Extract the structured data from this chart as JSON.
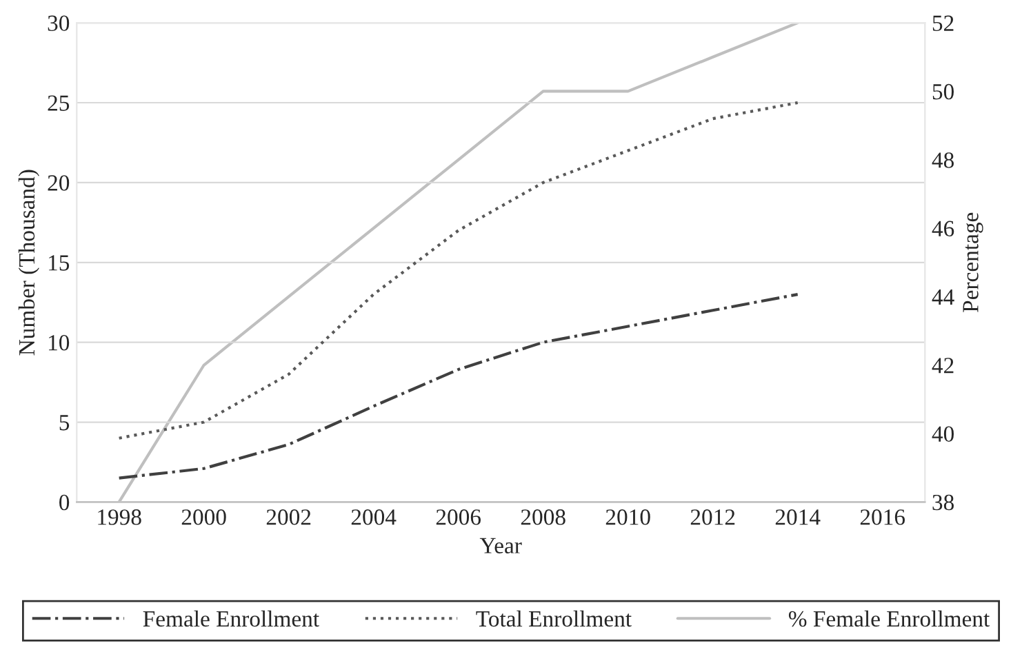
{
  "chart_data": {
    "type": "line",
    "xlabel": "Year",
    "ylabel": "Number (Thousand)",
    "y2label": "Percentage",
    "x": [
      1998,
      2000,
      2002,
      2004,
      2006,
      2008,
      2010,
      2012,
      2014
    ],
    "series": [
      {
        "name": "Female Enrollment",
        "color": "#404040",
        "line_style": "dashdot",
        "values": [
          1.5,
          2.1,
          3.6,
          6,
          8.3,
          10,
          11,
          12,
          13
        ]
      },
      {
        "name": "Total Enrollment",
        "color": "#595959",
        "line_style": "dotted",
        "values": [
          4,
          5,
          8,
          13,
          17,
          20,
          22,
          24,
          25
        ]
      },
      {
        "name": "% Female Enrollment",
        "color": "#bfbfbf",
        "line_style": "solid",
        "axis": "y2",
        "values": [
          38,
          42,
          44,
          46,
          48,
          50,
          50,
          51,
          52
        ]
      }
    ],
    "xlim": [
      1997,
      2017
    ],
    "xticks": [
      1998,
      2000,
      2002,
      2004,
      2006,
      2008,
      2010,
      2012,
      2014,
      2016
    ],
    "ylim": [
      0,
      30
    ],
    "yticks": [
      0,
      5,
      10,
      15,
      20,
      25,
      30
    ],
    "y2lim": [
      38,
      52
    ],
    "y2ticks": [
      38,
      40,
      42,
      44,
      46,
      48,
      50,
      52
    ],
    "grid": "y",
    "legend": "bottom"
  }
}
